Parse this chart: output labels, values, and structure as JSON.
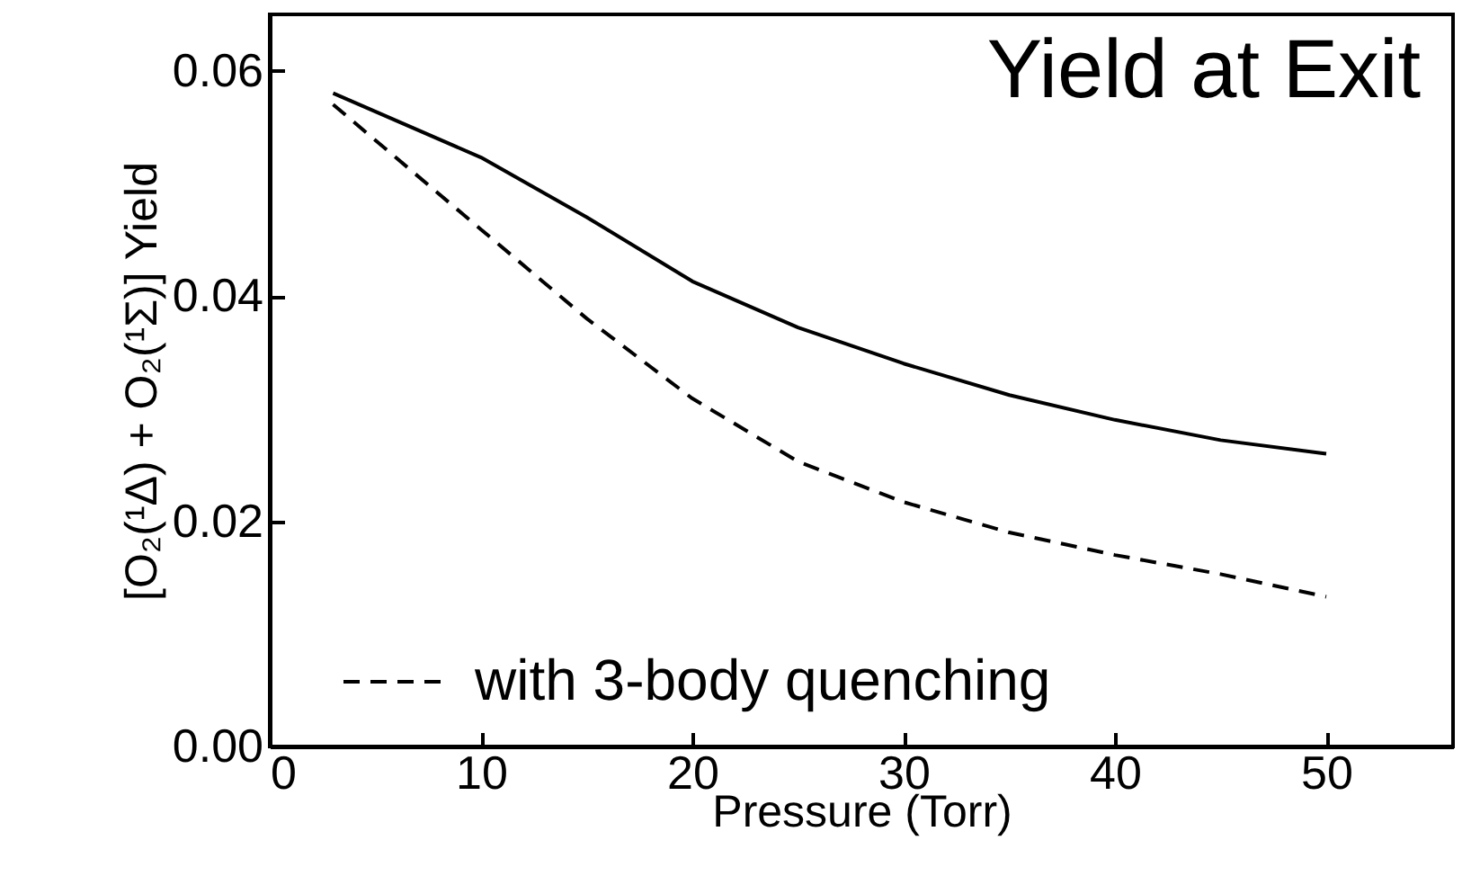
{
  "chart_data": {
    "type": "line",
    "title": "Yield at Exit",
    "xlabel": "Pressure (Torr)",
    "ylabel": "[O₂(¹Δ) + O₂(¹Σ)] Yield",
    "xlim": [
      0,
      56
    ],
    "xticks": [
      0,
      10,
      20,
      30,
      40,
      50
    ],
    "ylim": [
      0,
      0.065
    ],
    "yticks": [
      {
        "value": 0,
        "label": "0.00"
      },
      0.02,
      0.04,
      0.06
    ],
    "grid": false,
    "legend": "bottom left",
    "series": [
      {
        "color": "#000000",
        "line_style": "solid",
        "x": [
          3,
          10,
          15,
          20,
          25,
          30,
          35,
          40,
          45,
          50
        ],
        "values": [
          0.058,
          0.0523,
          0.047,
          0.0413,
          0.0372,
          0.034,
          0.0312,
          0.029,
          0.0272,
          0.026
        ]
      },
      {
        "name": "with 3-body quenching",
        "color": "#000000",
        "line_style": "dashed",
        "x": [
          3,
          10,
          15,
          20,
          25,
          30,
          35,
          40,
          45,
          50
        ],
        "values": [
          0.057,
          0.0459,
          0.038,
          0.0309,
          0.0253,
          0.0217,
          0.019,
          0.017,
          0.0153,
          0.0133
        ]
      }
    ]
  }
}
